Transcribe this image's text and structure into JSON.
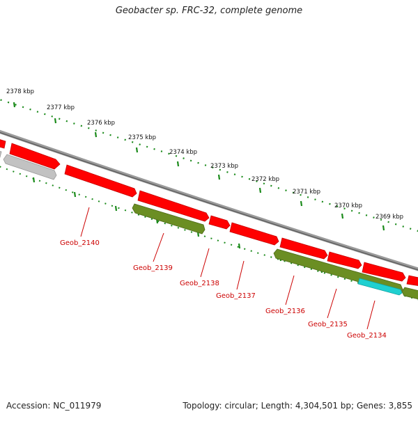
{
  "title": "Geobacter sp. FRC-32, complete genome",
  "footer": {
    "accession": "Accession: NC_011979",
    "info": "Topology: circular; Length: 4,304,501 bp; Genes: 3,855"
  },
  "colors": {
    "cds_forward": "#ff0000",
    "cds_reverse": "#6b8e23",
    "pseudo": "#b4b4b4",
    "rna": "#1fd0d0",
    "backbone": "#7a7a7a",
    "ticks": "#1a8a1a",
    "labels": "#cc0000"
  },
  "ruler": [
    {
      "label": "2378 kbp"
    },
    {
      "label": "2377 kbp"
    },
    {
      "label": "2376 kbp"
    },
    {
      "label": "2375 kbp"
    },
    {
      "label": "2374 kbp"
    },
    {
      "label": "2373 kbp"
    },
    {
      "label": "2372 kbp"
    },
    {
      "label": "2371 kbp"
    },
    {
      "label": "2370 kbp"
    },
    {
      "label": "2369 kbp"
    }
  ],
  "gene_labels": [
    {
      "name": "Geob_2140"
    },
    {
      "name": "Geob_2139"
    },
    {
      "name": "Geob_2138"
    },
    {
      "name": "Geob_2137"
    },
    {
      "name": "Geob_2136"
    },
    {
      "name": "Geob_2135"
    },
    {
      "name": "Geob_2134"
    }
  ]
}
